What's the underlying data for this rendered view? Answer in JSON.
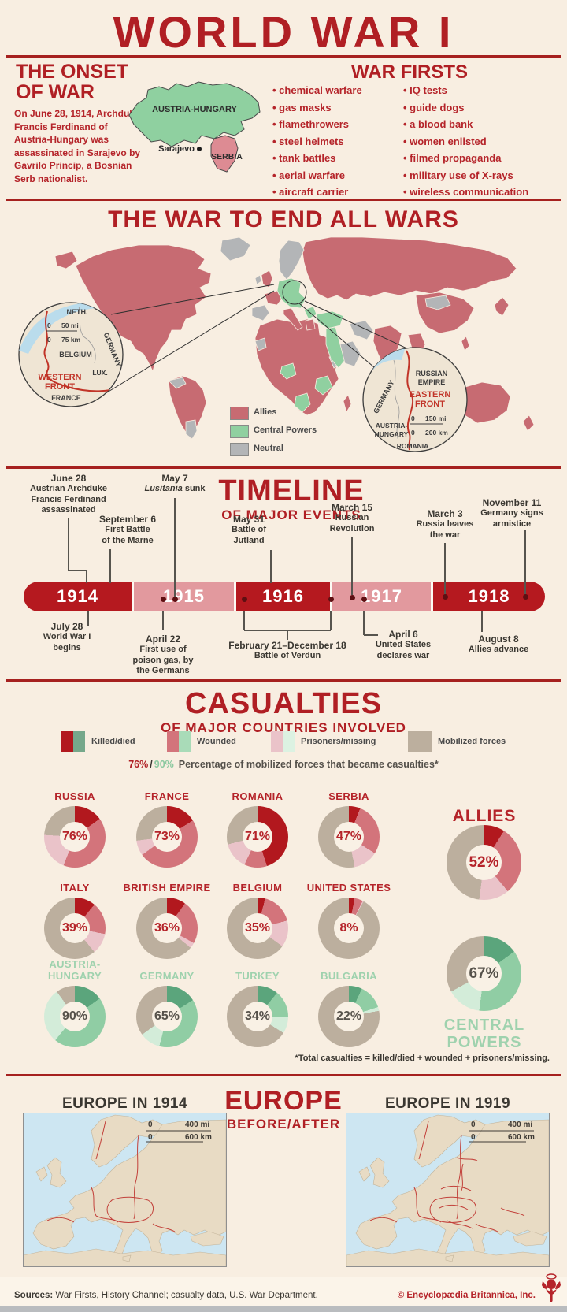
{
  "colors": {
    "background": "#f8eee1",
    "accent_red": "#b01f24",
    "rule_red": "#a6211f",
    "timeline_dark": "#b5191f",
    "timeline_light": "#e2999e",
    "map_allies": "#c76b72",
    "map_central": "#90d0a0",
    "map_neutral": "#b3b5b7",
    "donut_allies": [
      "#b2181e",
      "#d3747b",
      "#eac3c9",
      "#bcaf9e"
    ],
    "donut_central": [
      "#5ba57c",
      "#90cda4",
      "#d3ecd9",
      "#bcaf9e"
    ],
    "central_label_green": "#9fd2ae",
    "europe_water": "#cde6f2",
    "europe_land": "#e8dbc4",
    "border_line_red": "#c2403a"
  },
  "title": "WORLD WAR I",
  "onset": {
    "heading_line1": "THE ONSET",
    "heading_line2": "OF WAR",
    "body": "On June 28, 1914, Archduke Francis Ferdinand of Austria-Hungary was assassinated in Sarajevo by Gavrilo Princip, a Bosnian Serb nationalist.",
    "map": {
      "austria_hungary": "AUSTRIA-HUNGARY",
      "serbia": "SERBIA",
      "sarajevo": "Sarajevo"
    }
  },
  "war_firsts": {
    "heading": "WAR FIRSTS",
    "col1": [
      "chemical warfare",
      "gas masks",
      "flamethrowers",
      "steel helmets",
      "tank battles",
      "aerial warfare",
      "aircraft carrier"
    ],
    "col2": [
      "IQ tests",
      "guide dogs",
      "a blood bank",
      "women enlisted",
      "filmed propaganda",
      "military use of X-rays",
      "wireless communication"
    ]
  },
  "world_map": {
    "heading": "THE WAR TO END ALL WARS",
    "legend": [
      {
        "label": "Allies",
        "color": "#c76b72"
      },
      {
        "label": "Central Powers",
        "color": "#90d0a0"
      },
      {
        "label": "Neutral",
        "color": "#b3b5b7"
      }
    ],
    "western_inset": {
      "front": [
        "WESTERN",
        "FRONT"
      ],
      "neth": "NETH.",
      "belgium": "BELGIUM",
      "germany": "GERMANY",
      "lux": "LUX.",
      "france": "FRANCE",
      "zero": "0",
      "mi": "50 mi",
      "km": "75 km"
    },
    "eastern_inset": {
      "front": [
        "EASTERN",
        "FRONT"
      ],
      "russia": [
        "RUSSIAN",
        "EMPIRE"
      ],
      "germany": "GERMANY",
      "ah": [
        "AUSTRIA-",
        "HUNGARY"
      ],
      "romania": "ROMANIA",
      "zero": "0",
      "mi": "150 mi",
      "km": "200 km"
    }
  },
  "timeline": {
    "heading": "TIMELINE",
    "subheading": "OF MAJOR EVENTS",
    "years": [
      "1914",
      "1915",
      "1916",
      "1917",
      "1918"
    ],
    "events_above": [
      {
        "date": "June 28",
        "lines": [
          "Austrian Archduke",
          "Francis Ferdinand",
          "assassinated"
        ]
      },
      {
        "date": "May 7",
        "lines": [
          "Lusitania sunk"
        ],
        "italic_first_word": true
      },
      {
        "date": "September 6",
        "lines": [
          "First Battle",
          "of the Marne"
        ]
      },
      {
        "date": "May 31",
        "lines": [
          "Battle of",
          "Jutland"
        ]
      },
      {
        "date": "March 15",
        "lines": [
          "Russian",
          "Revolution"
        ]
      },
      {
        "date": "March 3",
        "lines": [
          "Russia leaves",
          "the war"
        ]
      },
      {
        "date": "November 11",
        "lines": [
          "Germany signs",
          "armistice"
        ]
      }
    ],
    "events_below": [
      {
        "date": "July 28",
        "lines": [
          "World War I",
          "begins"
        ]
      },
      {
        "date": "April 22",
        "lines": [
          "First use of",
          "poison gas, by",
          "the Germans"
        ]
      },
      {
        "date": "February 21–December 18",
        "lines": [
          "Battle of Verdun"
        ]
      },
      {
        "date": "April 6",
        "lines": [
          "United States",
          "declares war"
        ]
      },
      {
        "date": "August 8",
        "lines": [
          "Allies advance"
        ]
      }
    ]
  },
  "casualties": {
    "heading": "CASUALTIES",
    "subheading": "OF MAJOR COUNTRIES INVOLVED",
    "legend": [
      "Killed/died",
      "Wounded",
      "Prisoners/missing",
      "Mobilized forces"
    ],
    "percent_note": {
      "allies_pct": "76%",
      "separator": "/",
      "central_pct": "90%",
      "text": "Percentage of mobilized forces that became casualties*"
    },
    "allies_label": "ALLIES",
    "central_label": "CENTRAL POWERS",
    "footnote": "*Total casualties = killed/died + wounded + prisoners/missing."
  },
  "chart_data": {
    "type": "pie",
    "subtype": "donut",
    "title": "Casualties of major countries involved",
    "unit": "percent of mobilized forces",
    "segment_labels": [
      "Killed/died",
      "Wounded",
      "Prisoners/missing",
      "Mobilized (non-casualty)"
    ],
    "countries": [
      {
        "name": "RUSSIA",
        "group": "allies",
        "total": "76%",
        "segments": [
          15,
          41,
          20,
          24
        ]
      },
      {
        "name": "FRANCE",
        "group": "allies",
        "total": "73%",
        "segments": [
          16,
          49,
          8,
          27
        ]
      },
      {
        "name": "ROMANIA",
        "group": "allies",
        "total": "71%",
        "segments": [
          45,
          12,
          14,
          29
        ]
      },
      {
        "name": "SERBIA",
        "group": "allies",
        "total": "47%",
        "segments": [
          6,
          28,
          13,
          53
        ]
      },
      {
        "name": "ITALY",
        "group": "allies",
        "total": "39%",
        "segments": [
          11,
          17,
          11,
          61
        ]
      },
      {
        "name": "BRITISH EMPIRE",
        "group": "allies",
        "total": "36%",
        "segments": [
          10,
          23,
          3,
          64
        ]
      },
      {
        "name": "BELGIUM",
        "group": "allies",
        "total": "35%",
        "segments": [
          4,
          17,
          14,
          65
        ]
      },
      {
        "name": "UNITED STATES",
        "group": "allies",
        "total": "8%",
        "segments": [
          3,
          4.5,
          0.5,
          92
        ]
      },
      {
        "name": "AUSTRIA-HUNGARY",
        "group": "central",
        "total": "90%",
        "segments": [
          15,
          46,
          29,
          10
        ]
      },
      {
        "name": "GERMANY",
        "group": "central",
        "total": "65%",
        "segments": [
          16,
          38,
          11,
          35
        ]
      },
      {
        "name": "TURKEY",
        "group": "central",
        "total": "34%",
        "segments": [
          11,
          14,
          9,
          66
        ]
      },
      {
        "name": "BULGARIA",
        "group": "central",
        "total": "22%",
        "segments": [
          7,
          13,
          2,
          78
        ]
      }
    ],
    "groups": [
      {
        "name": "ALLIES",
        "group": "allies",
        "total": "52%",
        "segments": [
          9,
          30,
          13,
          48
        ]
      },
      {
        "name": "CENTRAL POWERS",
        "group": "central",
        "total": "67%",
        "segments": [
          15,
          37,
          15,
          33
        ]
      }
    ]
  },
  "europe": {
    "heading": "EUROPE",
    "subheading": "BEFORE/AFTER",
    "map1_title": "EUROPE IN 1914",
    "map2_title": "EUROPE IN 1919",
    "zero": "0",
    "mi": "400 mi",
    "km": "600 km"
  },
  "footer": {
    "sources_label": "Sources:",
    "sources_text": "War Firsts, History Channel; casualty data, U.S. War Department.",
    "copyright": "© Encyclopædia Britannica, Inc."
  }
}
